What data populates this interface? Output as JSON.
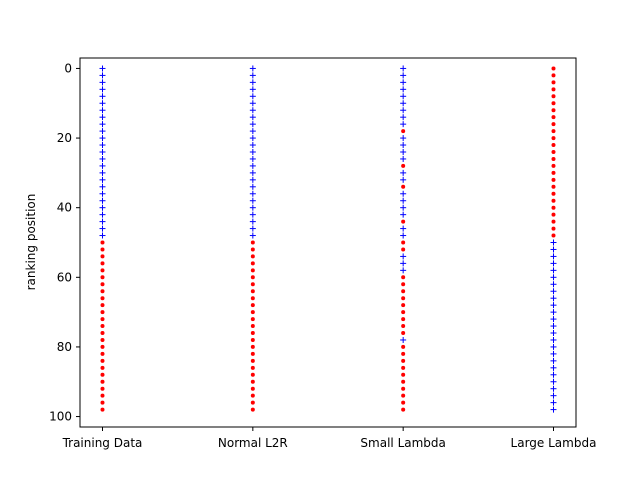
{
  "chart_data": {
    "type": "scatter",
    "title": "",
    "xlabel": "",
    "ylabel": "ranking position",
    "ylim": [
      -3,
      103
    ],
    "y_inverted": true,
    "yticks": [
      0,
      20,
      40,
      60,
      80,
      100
    ],
    "categories": [
      "Training Data",
      "Normal L2R",
      "Small Lambda",
      "Large Lambda"
    ],
    "grid": false,
    "colors": {
      "blue_plus": "#0000ff",
      "red_dot": "#ff0000",
      "axis": "#000000"
    },
    "series": [
      {
        "marker": "plus",
        "color": "#0000ff",
        "points": [
          {
            "category": "Training Data",
            "y": [
              0,
              2,
              4,
              6,
              8,
              10,
              12,
              14,
              16,
              18,
              20,
              22,
              24,
              26,
              28,
              30,
              32,
              34,
              36,
              38,
              40,
              42,
              44,
              46,
              48
            ]
          },
          {
            "category": "Normal L2R",
            "y": [
              0,
              2,
              4,
              6,
              8,
              10,
              12,
              14,
              16,
              18,
              20,
              22,
              24,
              26,
              28,
              30,
              32,
              34,
              36,
              38,
              40,
              42,
              44,
              46,
              48
            ]
          },
          {
            "category": "Small Lambda",
            "y": [
              0,
              2,
              4,
              6,
              8,
              10,
              12,
              14,
              16,
              20,
              22,
              24,
              26,
              30,
              32,
              36,
              38,
              40,
              42,
              46,
              48,
              54,
              56,
              58,
              78
            ]
          },
          {
            "category": "Large Lambda",
            "y": [
              50,
              52,
              54,
              56,
              58,
              60,
              62,
              64,
              66,
              68,
              70,
              72,
              74,
              76,
              78,
              80,
              82,
              84,
              86,
              88,
              90,
              92,
              94,
              96,
              98
            ]
          }
        ]
      },
      {
        "marker": "dot",
        "color": "#ff0000",
        "points": [
          {
            "category": "Training Data",
            "y": [
              50,
              52,
              54,
              56,
              58,
              60,
              62,
              64,
              66,
              68,
              70,
              72,
              74,
              76,
              78,
              80,
              82,
              84,
              86,
              88,
              90,
              92,
              94,
              96,
              98
            ]
          },
          {
            "category": "Normal L2R",
            "y": [
              50,
              52,
              54,
              56,
              58,
              60,
              62,
              64,
              66,
              68,
              70,
              72,
              74,
              76,
              78,
              80,
              82,
              84,
              86,
              88,
              90,
              92,
              94,
              96,
              98
            ]
          },
          {
            "category": "Small Lambda",
            "y": [
              18,
              28,
              34,
              44,
              50,
              52,
              60,
              62,
              64,
              66,
              68,
              70,
              72,
              74,
              76,
              80,
              82,
              84,
              86,
              88,
              90,
              92,
              94,
              96,
              98
            ]
          },
          {
            "category": "Large Lambda",
            "y": [
              0,
              2,
              4,
              6,
              8,
              10,
              12,
              14,
              16,
              18,
              20,
              22,
              24,
              26,
              28,
              30,
              32,
              34,
              36,
              38,
              40,
              42,
              44,
              46,
              48
            ]
          }
        ]
      }
    ]
  }
}
